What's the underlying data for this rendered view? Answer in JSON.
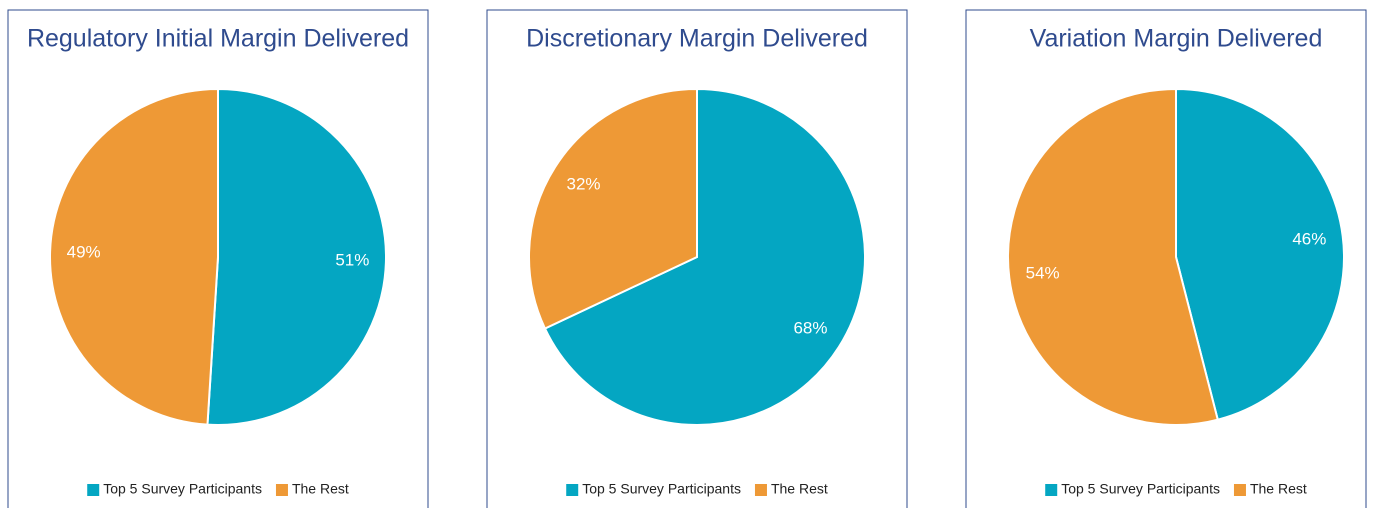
{
  "chart_data": [
    {
      "type": "pie",
      "title": "Regulatory Initial Margin Delivered",
      "categories": [
        "Top 5 Survey Participants",
        "The Rest"
      ],
      "values": [
        51,
        49
      ],
      "value_labels": [
        "51%",
        "49%"
      ],
      "colors": [
        "#04a6c2",
        "#ee9936"
      ],
      "legend": "bottom"
    },
    {
      "type": "pie",
      "title": "Discretionary Margin Delivered",
      "categories": [
        "Top 5 Survey Participants",
        "The Rest"
      ],
      "values": [
        68,
        32
      ],
      "value_labels": [
        "68%",
        "32%"
      ],
      "colors": [
        "#04a6c2",
        "#ee9936"
      ],
      "legend": "bottom"
    },
    {
      "type": "pie",
      "title": "Variation Margin Delivered",
      "categories": [
        "Top 5 Survey Participants",
        "The Rest"
      ],
      "values": [
        46,
        54
      ],
      "value_labels": [
        "46%",
        "54%"
      ],
      "colors": [
        "#04a6c2",
        "#ee9936"
      ],
      "legend": "bottom"
    }
  ]
}
